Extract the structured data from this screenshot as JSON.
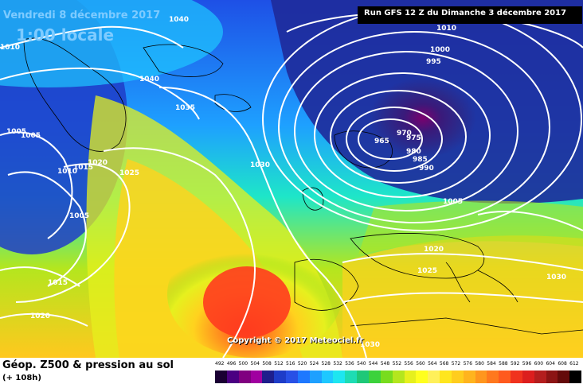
{
  "map": {
    "title_date": "Vendredi 8 décembre 2017",
    "title_time": "1:00 locale",
    "run_info": "Run GFS 12 Z du Dimanche 3 décembre 2017",
    "copyright": "Copyright © 2017 Meteociel.fr",
    "isobars": [
      {
        "label": "1040"
      },
      {
        "label": "1010"
      },
      {
        "label": "1040"
      },
      {
        "label": "1035"
      },
      {
        "label": "1005"
      },
      {
        "label": "1005"
      },
      {
        "label": "1010"
      },
      {
        "label": "1015"
      },
      {
        "label": "1020"
      },
      {
        "label": "1025"
      },
      {
        "label": "1030"
      },
      {
        "label": "1005"
      },
      {
        "label": "1015"
      },
      {
        "label": "1020"
      },
      {
        "label": "1010"
      },
      {
        "label": "1000"
      },
      {
        "label": "995"
      },
      {
        "label": "970"
      },
      {
        "label": "965"
      },
      {
        "label": "975"
      },
      {
        "label": "980"
      },
      {
        "label": "985"
      },
      {
        "label": "990"
      },
      {
        "label": "1005"
      },
      {
        "label": "1020"
      },
      {
        "label": "1025"
      },
      {
        "label": "1030"
      },
      {
        "label": "1030"
      }
    ]
  },
  "footer": {
    "title": "Géop. Z500 & pression au sol",
    "subtitle": "(+ 108h)"
  },
  "color_scale": {
    "labels": [
      "492",
      "496",
      "500",
      "504",
      "508",
      "512",
      "516",
      "520",
      "524",
      "528",
      "532",
      "536",
      "540",
      "544",
      "548",
      "552",
      "556",
      "560",
      "564",
      "568",
      "572",
      "576",
      "580",
      "584",
      "588",
      "592",
      "596",
      "600",
      "604",
      "608",
      "612"
    ],
    "colors": [
      "#1a0033",
      "#4b0082",
      "#800080",
      "#a000a0",
      "#1e1e8c",
      "#1e3cc8",
      "#2850e6",
      "#1e78ff",
      "#1ea0ff",
      "#1ec8ff",
      "#1ee6f0",
      "#1edcb4",
      "#1ec878",
      "#3cd23c",
      "#78dc1e",
      "#b4e61e",
      "#e6f01e",
      "#ffff1e",
      "#fff05a",
      "#ffe61e",
      "#ffcd1e",
      "#ffb41e",
      "#ff961e",
      "#ff781e",
      "#ff5a1e",
      "#f0321e",
      "#dc1e1e",
      "#b41e1e",
      "#8c1414",
      "#640a0a",
      "#000000"
    ]
  }
}
